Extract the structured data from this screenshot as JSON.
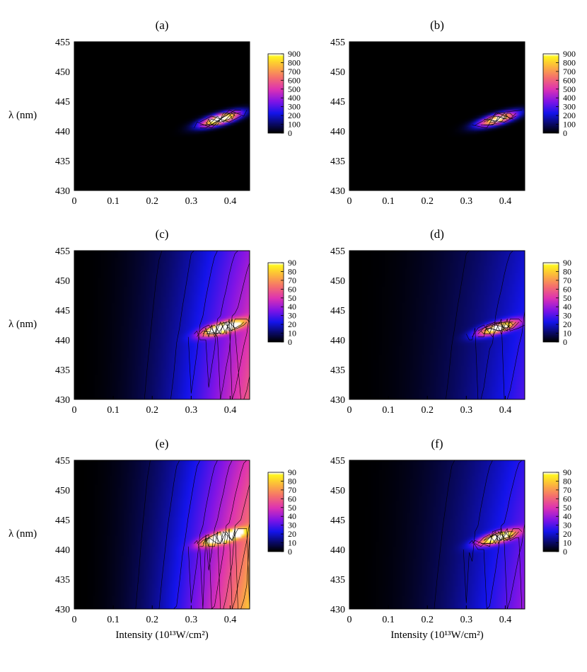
{
  "chart_data": [
    {
      "type": "heatmap",
      "title": "(a)",
      "xlabel": "",
      "ylabel": "λ (nm)",
      "xlim": [
        0,
        0.45
      ],
      "ylim": [
        430,
        455
      ],
      "x_ticks": [
        "0",
        "0.1",
        "0.2",
        "0.3",
        "0.4"
      ],
      "y_ticks": [
        "430",
        "435",
        "440",
        "445",
        "450",
        "455"
      ],
      "colorbar": {
        "min": 0,
        "max": 900,
        "ticks": [
          "0",
          "100",
          "200",
          "300",
          "400",
          "500",
          "600",
          "700",
          "800",
          "900"
        ]
      },
      "field": {
        "peak_x": 0.375,
        "peak_y": 442,
        "peak_value": 1200,
        "background_trend": 0
      }
    },
    {
      "type": "heatmap",
      "title": "(b)",
      "xlabel": "",
      "ylabel": "",
      "xlim": [
        0,
        0.45
      ],
      "ylim": [
        430,
        455
      ],
      "x_ticks": [
        "0",
        "0.1",
        "0.2",
        "0.3",
        "0.4"
      ],
      "y_ticks": [
        "430",
        "435",
        "440",
        "445",
        "450",
        "455"
      ],
      "colorbar": {
        "min": 0,
        "max": 900,
        "ticks": [
          "0",
          "100",
          "200",
          "300",
          "400",
          "500",
          "600",
          "700",
          "800",
          "900"
        ]
      },
      "field": {
        "peak_x": 0.38,
        "peak_y": 442,
        "peak_value": 1000,
        "background_trend": 0
      }
    },
    {
      "type": "heatmap",
      "title": "(c)",
      "xlabel": "",
      "ylabel": "λ (nm)",
      "xlim": [
        0,
        0.45
      ],
      "ylim": [
        430,
        455
      ],
      "x_ticks": [
        "0",
        "0.1",
        "0.2",
        "0.3",
        "0.4"
      ],
      "y_ticks": [
        "430",
        "435",
        "440",
        "445",
        "450",
        "455"
      ],
      "colorbar": {
        "min": 0,
        "max": 90,
        "ticks": [
          "0",
          "10",
          "20",
          "30",
          "40",
          "50",
          "60",
          "70",
          "80",
          "90"
        ]
      },
      "field": {
        "peak_x": 0.38,
        "peak_y": 442,
        "peak_value": 110,
        "background_trend": 60
      }
    },
    {
      "type": "heatmap",
      "title": "(d)",
      "xlabel": "",
      "ylabel": "",
      "xlim": [
        0,
        0.45
      ],
      "ylim": [
        430,
        455
      ],
      "x_ticks": [
        "0",
        "0.1",
        "0.2",
        "0.3",
        "0.4"
      ],
      "y_ticks": [
        "430",
        "435",
        "440",
        "445",
        "450",
        "455"
      ],
      "colorbar": {
        "min": 0,
        "max": 90,
        "ticks": [
          "0",
          "10",
          "20",
          "30",
          "40",
          "50",
          "60",
          "70",
          "80",
          "90"
        ]
      },
      "field": {
        "peak_x": 0.38,
        "peak_y": 442,
        "peak_value": 95,
        "background_trend": 30
      }
    },
    {
      "type": "heatmap",
      "title": "(e)",
      "xlabel": "Intensity (10¹³W/cm²)",
      "ylabel": "λ (nm)",
      "xlim": [
        0,
        0.45
      ],
      "ylim": [
        430,
        455
      ],
      "x_ticks": [
        "0",
        "0.1",
        "0.2",
        "0.3",
        "0.4"
      ],
      "y_ticks": [
        "430",
        "435",
        "440",
        "445",
        "450",
        "455"
      ],
      "colorbar": {
        "min": 0,
        "max": 90,
        "ticks": [
          "0",
          "10",
          "20",
          "30",
          "40",
          "50",
          "60",
          "70",
          "80",
          "90"
        ]
      },
      "field": {
        "peak_x": 0.38,
        "peak_y": 442,
        "peak_value": 110,
        "background_trend": 80
      }
    },
    {
      "type": "heatmap",
      "title": "(f)",
      "xlabel": "Intensity (10¹³W/cm²)",
      "ylabel": "",
      "xlim": [
        0,
        0.45
      ],
      "ylim": [
        430,
        455
      ],
      "x_ticks": [
        "0",
        "0.1",
        "0.2",
        "0.3",
        "0.4"
      ],
      "y_ticks": [
        "430",
        "435",
        "440",
        "445",
        "450",
        "455"
      ],
      "colorbar": {
        "min": 0,
        "max": 90,
        "ticks": [
          "0",
          "10",
          "20",
          "30",
          "40",
          "50",
          "60",
          "70",
          "80",
          "90"
        ]
      },
      "field": {
        "peak_x": 0.38,
        "peak_y": 442,
        "peak_value": 95,
        "background_trend": 40
      }
    }
  ]
}
